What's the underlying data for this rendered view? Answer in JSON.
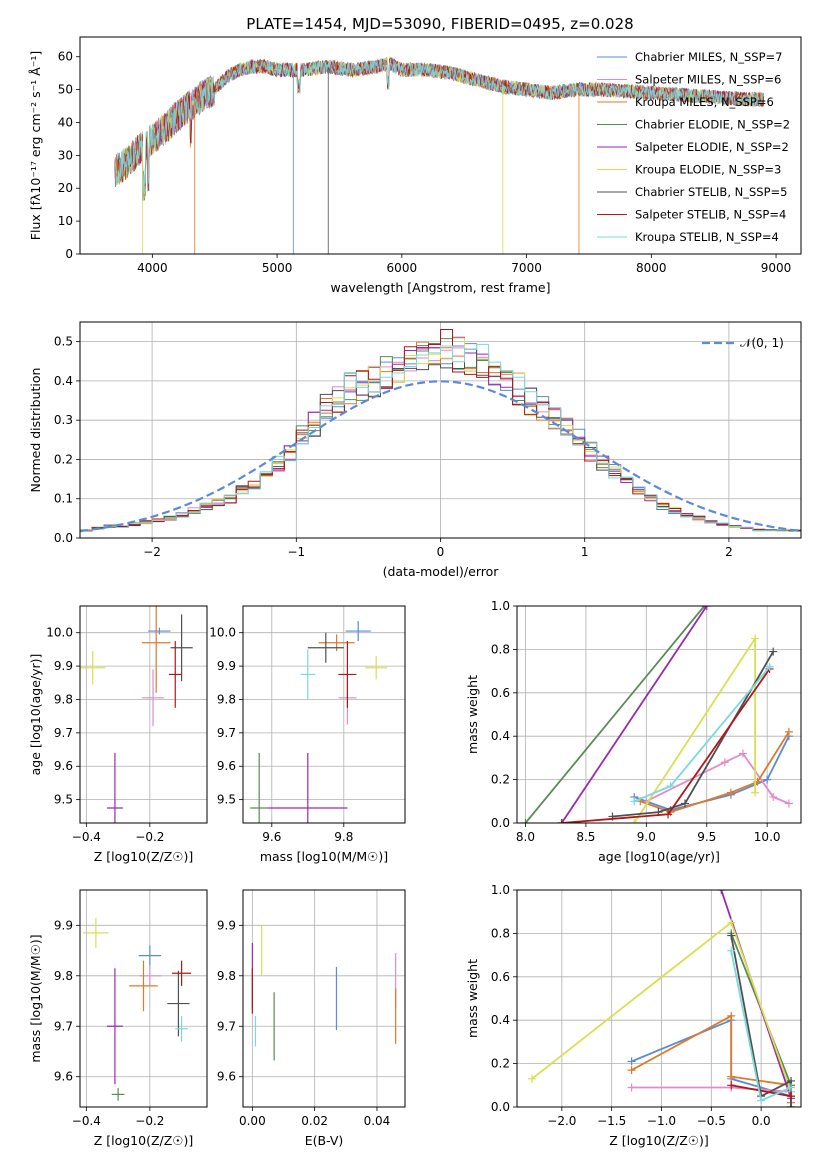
{
  "figure": {
    "title": "PLATE=1454, MJD=53090, FIBERID=0495, z=0.028"
  },
  "palette": [
    "#5b8bd6",
    "#e48ac8",
    "#e07a28",
    "#5a8a5a",
    "#9a2ab0",
    "#d8e050",
    "#505050",
    "#b01818",
    "#7ad8e0"
  ],
  "chart_data": [
    {
      "id": "spectrum",
      "type": "line",
      "xlabel": "wavelength [Angstrom, rest frame]",
      "ylabel": "Flux [fλ10⁻¹⁷ erg cm⁻² s⁻¹ Å⁻¹]",
      "xlim": [
        3420,
        9200
      ],
      "ylim": [
        0,
        66
      ],
      "xticks": [
        4000,
        5000,
        6000,
        7000,
        8000,
        9000
      ],
      "yticks": [
        0,
        10,
        20,
        30,
        40,
        50,
        60
      ],
      "grid": false,
      "legend": "top-right",
      "series": [
        {
          "name": "Chabrier MILES, N_SSP=7"
        },
        {
          "name": "Salpeter MILES, N_SSP=6"
        },
        {
          "name": "Kroupa MILES, N_SSP=6"
        },
        {
          "name": "Chabrier ELODIE, N_SSP=2"
        },
        {
          "name": "Salpeter ELODIE, N_SSP=2"
        },
        {
          "name": "Kroupa ELODIE, N_SSP=3"
        },
        {
          "name": "Chabrier STELIB, N_SSP=5"
        },
        {
          "name": "Salpeter STELIB, N_SSP=4"
        },
        {
          "name": "Kroupa STELIB, N_SSP=4"
        }
      ],
      "continuum": [
        [
          3700,
          25
        ],
        [
          3800,
          28
        ],
        [
          3900,
          32
        ],
        [
          4000,
          35
        ],
        [
          4100,
          38
        ],
        [
          4200,
          42
        ],
        [
          4300,
          45
        ],
        [
          4400,
          48
        ],
        [
          4500,
          50
        ],
        [
          4600,
          54
        ],
        [
          4700,
          56
        ],
        [
          4800,
          57
        ],
        [
          4900,
          57
        ],
        [
          5000,
          56
        ],
        [
          5200,
          56
        ],
        [
          5400,
          57
        ],
        [
          5600,
          56
        ],
        [
          5800,
          57
        ],
        [
          5900,
          58
        ],
        [
          6000,
          56
        ],
        [
          6200,
          56
        ],
        [
          6400,
          55
        ],
        [
          6600,
          53
        ],
        [
          6800,
          51
        ],
        [
          7000,
          50
        ],
        [
          7200,
          49
        ],
        [
          7400,
          50
        ],
        [
          7600,
          50
        ],
        [
          8000,
          49
        ],
        [
          8400,
          48
        ],
        [
          8800,
          47
        ],
        [
          9000,
          47
        ]
      ]
    },
    {
      "id": "residuals",
      "type": "bar",
      "xlabel": "(data-model)/error",
      "ylabel": "Normed distribution",
      "xlim": [
        -2.5,
        2.5
      ],
      "ylim": [
        0,
        0.55
      ],
      "xticks": [
        -2,
        -1,
        0,
        1,
        2
      ],
      "yticks": [
        0.0,
        0.1,
        0.2,
        0.3,
        0.4,
        0.5
      ],
      "grid": true,
      "legend": "top-right",
      "legend_label": "𝒩(0, 1)",
      "bin_width": 0.1,
      "base_hist": [
        0.02,
        0.025,
        0.03,
        0.03,
        0.035,
        0.04,
        0.045,
        0.05,
        0.06,
        0.07,
        0.08,
        0.09,
        0.1,
        0.12,
        0.14,
        0.16,
        0.19,
        0.22,
        0.26,
        0.29,
        0.33,
        0.35,
        0.38,
        0.39,
        0.4,
        0.42,
        0.43,
        0.44,
        0.46,
        0.47,
        0.48,
        0.47,
        0.46,
        0.45,
        0.42,
        0.4,
        0.38,
        0.35,
        0.33,
        0.3,
        0.28,
        0.26,
        0.22,
        0.19,
        0.17,
        0.14,
        0.12,
        0.1,
        0.08,
        0.07,
        0.06,
        0.05,
        0.04,
        0.035,
        0.03,
        0.025,
        0.02,
        0.02,
        0.02,
        0.02
      ]
    },
    {
      "id": "age-vs-Z",
      "type": "scatter",
      "xlabel": "Z [log10(Z/Z☉)]",
      "ylabel": "age  [log10(age/yr)]",
      "xlim": [
        -0.42,
        -0.02
      ],
      "ylim": [
        9.43,
        10.08
      ],
      "xticks": [
        -0.4,
        -0.2
      ],
      "yticks": [
        9.5,
        9.6,
        9.7,
        9.8,
        9.9,
        10.0
      ],
      "grid": true,
      "points": [
        {
          "x": -0.17,
          "y": 10.005,
          "xerr": 0.07,
          "yerr": 0.02,
          "c": 0
        },
        {
          "x": -0.19,
          "y": 9.805,
          "xerr": 0.07,
          "yerr": 0.17,
          "c": 1
        },
        {
          "x": -0.18,
          "y": 9.97,
          "xerr": 0.09,
          "yerr": 0.3,
          "c": 2
        },
        {
          "x": -0.31,
          "y": 9.475,
          "xerr": 0.05,
          "yerr": 0.33,
          "c": 4
        },
        {
          "x": -0.38,
          "y": 9.895,
          "xerr": 0.08,
          "yerr": 0.1,
          "c": 5
        },
        {
          "x": -0.1,
          "y": 9.955,
          "xerr": 0.07,
          "yerr": 0.2,
          "c": 6
        },
        {
          "x": -0.12,
          "y": 9.875,
          "xerr": 0.04,
          "yerr": 0.2,
          "c": 7
        }
      ]
    },
    {
      "id": "age-vs-mass",
      "type": "scatter",
      "xlabel": "mass [log10(M/M☉)]",
      "ylabel": "",
      "xlim": [
        9.52,
        9.97
      ],
      "ylim": [
        9.43,
        10.08
      ],
      "xticks": [
        9.6,
        9.8
      ],
      "yticks": [
        9.5,
        9.6,
        9.7,
        9.8,
        9.9,
        10.0
      ],
      "grid": true,
      "points": [
        {
          "x": 9.84,
          "y": 10.005,
          "xerr": 0.07,
          "yerr": 0.06,
          "c": 0
        },
        {
          "x": 9.81,
          "y": 9.805,
          "xerr": 0.05,
          "yerr": 0.16,
          "c": 1
        },
        {
          "x": 9.78,
          "y": 9.97,
          "xerr": 0.1,
          "yerr": 0.05,
          "c": 2
        },
        {
          "x": 9.565,
          "y": 9.475,
          "xerr": 0.05,
          "yerr": 0.33,
          "c": 3
        },
        {
          "x": 9.7,
          "y": 9.475,
          "xerr": 0.22,
          "yerr": 0.33,
          "c": 4
        },
        {
          "x": 9.89,
          "y": 9.895,
          "xerr": 0.06,
          "yerr": 0.07,
          "c": 5
        },
        {
          "x": 9.75,
          "y": 9.955,
          "xerr": 0.1,
          "yerr": 0.09,
          "c": 6
        },
        {
          "x": 9.81,
          "y": 9.875,
          "xerr": 0.05,
          "yerr": 0.2,
          "c": 7
        },
        {
          "x": 9.7,
          "y": 9.875,
          "xerr": 0.04,
          "yerr": 0.15,
          "c": 8
        }
      ]
    },
    {
      "id": "massweight-vs-age",
      "type": "line",
      "xlabel": "age  [log10(age/yr)]",
      "ylabel": "mass weight",
      "xlim": [
        7.93,
        10.28
      ],
      "ylim": [
        0,
        1
      ],
      "xticks": [
        8.0,
        8.5,
        9.0,
        9.5,
        10.0
      ],
      "yticks": [
        0.0,
        0.2,
        0.4,
        0.6,
        0.8,
        1.0
      ],
      "grid": true,
      "series": [
        {
          "c": 0,
          "points": [
            [
              8.9,
              0.12
            ],
            [
              9.2,
              0.06
            ],
            [
              9.7,
              0.13
            ],
            [
              10.0,
              0.2
            ],
            [
              10.18,
              0.4
            ]
          ]
        },
        {
          "c": 1,
          "points": [
            [
              9.0,
              0.1
            ],
            [
              9.65,
              0.28
            ],
            [
              9.8,
              0.32
            ],
            [
              10.05,
              0.12
            ],
            [
              10.18,
              0.09
            ]
          ]
        },
        {
          "c": 2,
          "points": [
            [
              8.95,
              0.1
            ],
            [
              9.2,
              0.05
            ],
            [
              9.7,
              0.14
            ],
            [
              9.92,
              0.19
            ],
            [
              10.18,
              0.42
            ]
          ]
        },
        {
          "c": 3,
          "points": [
            [
              8.0,
              0.0
            ],
            [
              9.48,
              1.0
            ]
          ]
        },
        {
          "c": 4,
          "points": [
            [
              8.3,
              0.0
            ],
            [
              9.5,
              1.0
            ]
          ]
        },
        {
          "c": 5,
          "points": [
            [
              8.9,
              0.0
            ],
            [
              9.9,
              0.85
            ],
            [
              9.9,
              0.14
            ]
          ]
        },
        {
          "c": 6,
          "points": [
            [
              8.72,
              0.03
            ],
            [
              9.1,
              0.05
            ],
            [
              9.32,
              0.09
            ],
            [
              10.05,
              0.79
            ]
          ]
        },
        {
          "c": 7,
          "points": [
            [
              8.3,
              0.0
            ],
            [
              9.18,
              0.04
            ],
            [
              10.02,
              0.71
            ]
          ]
        },
        {
          "c": 8,
          "points": [
            [
              8.9,
              0.1
            ],
            [
              9.2,
              0.17
            ],
            [
              10.02,
              0.72
            ]
          ]
        }
      ]
    },
    {
      "id": "mass-vs-Z",
      "type": "scatter",
      "xlabel": "Z [log10(Z/Z☉)]",
      "ylabel": "mass [log10(M/M☉)]",
      "xlim": [
        -0.42,
        -0.02
      ],
      "ylim": [
        9.54,
        9.97
      ],
      "xticks": [
        -0.4,
        -0.2
      ],
      "yticks": [
        9.6,
        9.7,
        9.8,
        9.9
      ],
      "grid": true,
      "points": [
        {
          "x": -0.2,
          "y": 9.84,
          "xerr": 0.07,
          "yerr": 0.04,
          "c": 0
        },
        {
          "x": -0.2,
          "y": 9.8,
          "xerr": 0.07,
          "yerr": 0.04,
          "c": 1
        },
        {
          "x": -0.22,
          "y": 9.78,
          "xerr": 0.09,
          "yerr": 0.1,
          "c": 2
        },
        {
          "x": -0.3,
          "y": 9.565,
          "xerr": 0.04,
          "yerr": 0.025,
          "c": 3
        },
        {
          "x": -0.31,
          "y": 9.7,
          "xerr": 0.05,
          "yerr": 0.23,
          "c": 4
        },
        {
          "x": -0.37,
          "y": 9.885,
          "xerr": 0.08,
          "yerr": 0.06,
          "c": 5
        },
        {
          "x": -0.11,
          "y": 9.745,
          "xerr": 0.07,
          "yerr": 0.13,
          "c": 6
        },
        {
          "x": -0.1,
          "y": 9.805,
          "xerr": 0.06,
          "yerr": 0.05,
          "c": 7
        },
        {
          "x": -0.1,
          "y": 9.695,
          "xerr": 0.04,
          "yerr": 0.05,
          "c": 8
        }
      ]
    },
    {
      "id": "mass-vs-EBV",
      "type": "scatter",
      "xlabel": "E(B-V)",
      "ylabel": "",
      "xlim": [
        -0.003,
        0.049
      ],
      "ylim": [
        9.54,
        9.97
      ],
      "xticks": [
        0.0,
        0.02,
        0.04
      ],
      "yticks": [
        9.6,
        9.7,
        9.8,
        9.9
      ],
      "grid": true,
      "points": [
        {
          "x": 0.027,
          "y": 9.755,
          "yerr": 0.125,
          "c": 0
        },
        {
          "x": 0.046,
          "y": 9.79,
          "yerr": 0.11,
          "c": 1
        },
        {
          "x": 0.046,
          "y": 9.72,
          "yerr": 0.11,
          "c": 2
        },
        {
          "x": 0.007,
          "y": 9.7,
          "yerr": 0.135,
          "c": 3
        },
        {
          "x": 0.0,
          "y": 9.8,
          "yerr": 0.13,
          "c": 4
        },
        {
          "x": 0.003,
          "y": 9.85,
          "yerr": 0.1,
          "c": 5
        },
        {
          "x": 0.0,
          "y": 9.77,
          "yerr": 0.09,
          "c": 7
        },
        {
          "x": 0.001,
          "y": 9.69,
          "yerr": 0.06,
          "c": 8
        }
      ]
    },
    {
      "id": "massweight-vs-Z",
      "type": "line",
      "xlabel": "Z [log10(Z/Z☉)]",
      "ylabel": "mass weight",
      "xlim": [
        -2.45,
        0.4
      ],
      "ylim": [
        0,
        1
      ],
      "xticks": [
        -2.0,
        -1.5,
        -1.0,
        -0.5,
        0.0
      ],
      "yticks": [
        0.0,
        0.2,
        0.4,
        0.6,
        0.8,
        1.0
      ],
      "grid": true,
      "series": [
        {
          "c": 0,
          "points": [
            [
              -1.3,
              0.21
            ],
            [
              -0.3,
              0.4
            ],
            [
              -0.3,
              0.13
            ],
            [
              0.3,
              0.05
            ],
            [
              0.3,
              0.0
            ]
          ]
        },
        {
          "c": 1,
          "points": [
            [
              -1.3,
              0.09
            ],
            [
              -0.3,
              0.09
            ],
            [
              0.3,
              0.07
            ]
          ]
        },
        {
          "c": 2,
          "points": [
            [
              -1.3,
              0.17
            ],
            [
              -0.3,
              0.42
            ],
            [
              -0.3,
              0.14
            ],
            [
              0.3,
              0.1
            ],
            [
              0.3,
              0.02
            ]
          ]
        },
        {
          "c": 3,
          "points": [
            [
              -0.3,
              0.8
            ],
            [
              0.3,
              0.1
            ]
          ]
        },
        {
          "c": 4,
          "points": [
            [
              -0.4,
              1.0
            ],
            [
              0.3,
              0.04
            ]
          ]
        },
        {
          "c": 5,
          "points": [
            [
              -2.3,
              0.13
            ],
            [
              -0.3,
              0.85
            ],
            [
              0.3,
              0.07
            ]
          ]
        },
        {
          "c": 6,
          "points": [
            [
              -0.3,
              0.79
            ],
            [
              0.0,
              0.05
            ],
            [
              0.3,
              0.12
            ],
            [
              0.3,
              0.0
            ]
          ]
        },
        {
          "c": 7,
          "points": [
            [
              -0.3,
              0.1
            ],
            [
              0.3,
              0.05
            ]
          ]
        },
        {
          "c": 8,
          "points": [
            [
              -0.3,
              0.72
            ],
            [
              0.0,
              0.03
            ],
            [
              0.3,
              0.09
            ]
          ]
        }
      ]
    }
  ]
}
